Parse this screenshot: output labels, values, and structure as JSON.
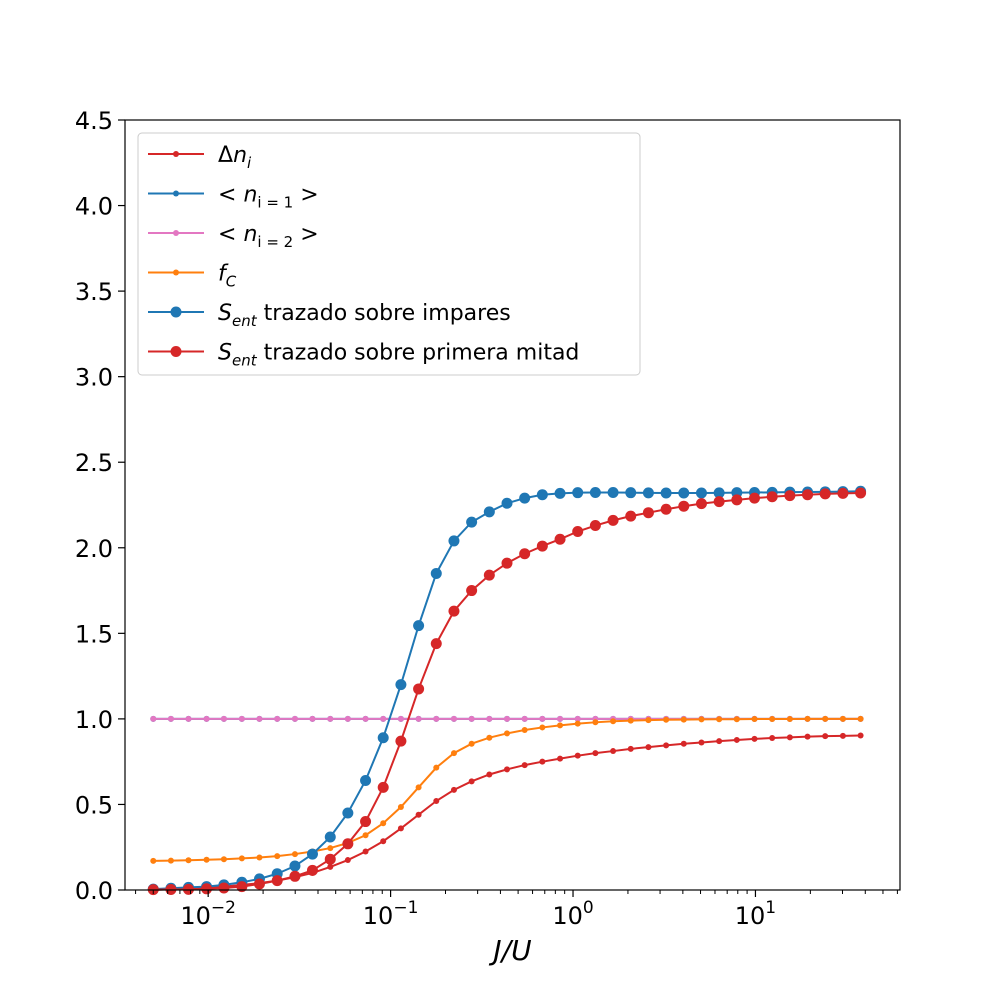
{
  "chart_data": {
    "type": "line",
    "xlabel": "J/U",
    "xscale": "log",
    "xlim": [
      0.0035,
      62
    ],
    "ylim": [
      0,
      4.5
    ],
    "y_ticks": [
      "0.0",
      "0.5",
      "1.0",
      "1.5",
      "2.0",
      "2.5",
      "3.0",
      "3.5",
      "4.0",
      "4.5"
    ],
    "x_ticks": [
      {
        "value": 0.01,
        "base": "10",
        "exp": "−2"
      },
      {
        "value": 0.1,
        "base": "10",
        "exp": "−1"
      },
      {
        "value": 1,
        "base": "10",
        "exp": "0"
      },
      {
        "value": 10,
        "base": "10",
        "exp": "1"
      }
    ],
    "grid": false,
    "legend_position": "top-left",
    "legend": [
      {
        "main": "Δ",
        "italic": "n",
        "sub": "i",
        "tail": ""
      },
      {
        "main": "< ",
        "italic": "n",
        "sub": "i = 1",
        "tail": " >"
      },
      {
        "main": "< ",
        "italic": "n",
        "sub": "i = 2",
        "tail": " >"
      },
      {
        "main": "",
        "italic": "f",
        "sub": "C",
        "tail": ""
      },
      {
        "main": "",
        "italic": "S",
        "sub": "ent",
        "tail": " trazado sobre impares"
      },
      {
        "main": "",
        "italic": "S",
        "sub": "ent",
        "tail": " trazado sobre primera mitad"
      }
    ],
    "x": [
      0.005,
      0.00625,
      0.0078,
      0.0098,
      0.0122,
      0.0153,
      0.0191,
      0.0239,
      0.0299,
      0.0373,
      0.0467,
      0.0583,
      0.0729,
      0.0911,
      0.1139,
      0.1424,
      0.178,
      0.2225,
      0.2781,
      0.3477,
      0.4346,
      0.5432,
      0.679,
      0.8488,
      1.061,
      1.326,
      1.658,
      2.072,
      2.59,
      3.238,
      4.047,
      5.059,
      6.324,
      7.905,
      9.881,
      12.35,
      15.44,
      19.3,
      24.12,
      30.16,
      37.7
    ],
    "series": [
      {
        "name": "Δn_i",
        "color": "#d62728",
        "marker": "small",
        "values": [
          0.0,
          0.005,
          0.01,
          0.015,
          0.02,
          0.03,
          0.04,
          0.055,
          0.075,
          0.1,
          0.135,
          0.175,
          0.225,
          0.285,
          0.36,
          0.44,
          0.52,
          0.585,
          0.635,
          0.675,
          0.705,
          0.73,
          0.75,
          0.768,
          0.785,
          0.8,
          0.812,
          0.825,
          0.835,
          0.845,
          0.855,
          0.862,
          0.87,
          0.877,
          0.883,
          0.888,
          0.892,
          0.896,
          0.899,
          0.901,
          0.903
        ]
      },
      {
        "name": "< n_{i = 1} >",
        "color": "#1f77b4",
        "marker": "small",
        "values": [
          1.0,
          1.0,
          1.0,
          1.0,
          1.0,
          1.0,
          1.0,
          1.0,
          1.0,
          1.0,
          1.0,
          1.0,
          1.0,
          1.0,
          1.0,
          1.0,
          1.0,
          1.0,
          1.0,
          1.0,
          1.0,
          1.0,
          1.0,
          1.0,
          1.0,
          1.0,
          1.0,
          1.0,
          1.0,
          1.0,
          1.0,
          1.0,
          1.0,
          1.0,
          1.0,
          1.0,
          1.0,
          1.0,
          1.0,
          1.0,
          1.0
        ]
      },
      {
        "name": "< n_{i = 2} >",
        "color": "#e377c2",
        "marker": "small",
        "values": [
          1.0,
          1.0,
          1.0,
          1.0,
          1.0,
          1.0,
          1.0,
          1.0,
          1.0,
          1.0,
          1.0,
          1.0,
          1.0,
          1.0,
          1.0,
          1.0,
          1.0,
          1.0,
          1.0,
          1.0,
          1.0,
          1.0,
          1.0,
          1.0,
          1.0,
          1.0,
          1.0,
          1.0,
          1.0,
          1.0,
          1.0,
          1.0,
          1.0,
          1.0,
          1.0,
          1.0,
          1.0,
          1.0,
          1.0,
          1.0,
          1.0
        ]
      },
      {
        "name": "f_C",
        "color": "#ff7f0e",
        "marker": "small",
        "values": [
          0.17,
          0.172,
          0.174,
          0.177,
          0.18,
          0.185,
          0.19,
          0.198,
          0.21,
          0.225,
          0.245,
          0.275,
          0.32,
          0.39,
          0.485,
          0.6,
          0.715,
          0.8,
          0.855,
          0.89,
          0.915,
          0.935,
          0.95,
          0.962,
          0.972,
          0.98,
          0.986,
          0.99,
          0.993,
          0.995,
          0.996,
          0.997,
          0.998,
          0.998,
          0.999,
          0.999,
          0.999,
          1.0,
          1.0,
          1.0,
          1.0
        ]
      },
      {
        "name": "S_ent trazado sobre impares",
        "color": "#1f77b4",
        "marker": "large",
        "values": [
          0.005,
          0.01,
          0.015,
          0.02,
          0.03,
          0.045,
          0.065,
          0.095,
          0.14,
          0.21,
          0.31,
          0.45,
          0.64,
          0.89,
          1.2,
          1.545,
          1.85,
          2.04,
          2.15,
          2.21,
          2.26,
          2.29,
          2.31,
          2.318,
          2.322,
          2.323,
          2.323,
          2.322,
          2.321,
          2.32,
          2.32,
          2.32,
          2.321,
          2.322,
          2.323,
          2.324,
          2.325,
          2.326,
          2.327,
          2.328,
          2.33
        ]
      },
      {
        "name": "S_ent trazado sobre primera mitad",
        "color": "#d62728",
        "marker": "large",
        "values": [
          0.002,
          0.003,
          0.004,
          0.007,
          0.012,
          0.02,
          0.035,
          0.055,
          0.08,
          0.115,
          0.18,
          0.27,
          0.4,
          0.6,
          0.87,
          1.175,
          1.44,
          1.63,
          1.75,
          1.84,
          1.91,
          1.965,
          2.01,
          2.05,
          2.095,
          2.13,
          2.16,
          2.185,
          2.205,
          2.225,
          2.243,
          2.258,
          2.27,
          2.28,
          2.29,
          2.298,
          2.305,
          2.31,
          2.315,
          2.318,
          2.32
        ]
      }
    ]
  }
}
